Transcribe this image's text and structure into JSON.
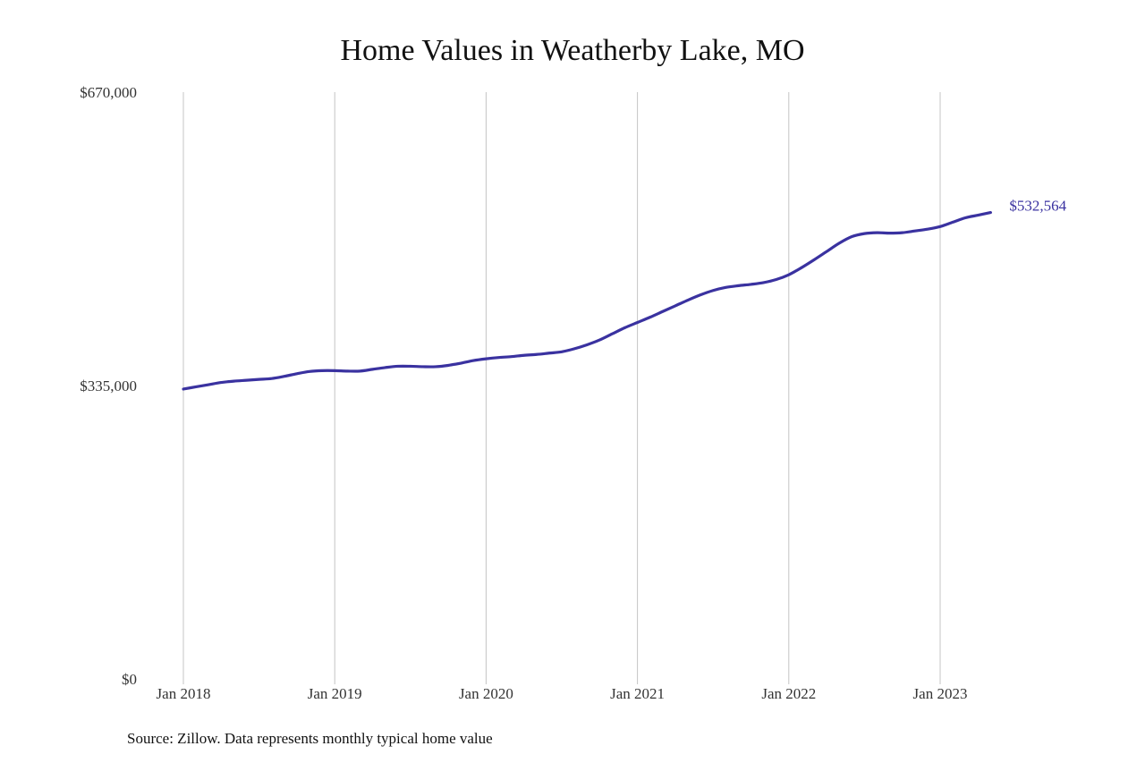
{
  "chart_data": {
    "type": "line",
    "title": "Home Values in Weatherby Lake, MO",
    "source": "Source: Zillow. Data represents monthly typical home value",
    "xlabel": "",
    "ylabel": "",
    "ylim": [
      0,
      670000
    ],
    "yticks": [
      {
        "value": 0,
        "label": "$0"
      },
      {
        "value": 335000,
        "label": "$335,000"
      },
      {
        "value": 670000,
        "label": "$670,000"
      }
    ],
    "xticks": [
      {
        "value": "2018-01",
        "label": "Jan 2018"
      },
      {
        "value": "2019-01",
        "label": "Jan 2019"
      },
      {
        "value": "2020-01",
        "label": "Jan 2020"
      },
      {
        "value": "2021-01",
        "label": "Jan 2021"
      },
      {
        "value": "2022-01",
        "label": "Jan 2022"
      },
      {
        "value": "2023-01",
        "label": "Jan 2023"
      }
    ],
    "grid": "vertical",
    "line_color": "#3a32a0",
    "start_month": "2018-01",
    "end_label": "$532,564",
    "values": [
      331000,
      333500,
      336000,
      338500,
      340000,
      341000,
      342000,
      343000,
      345500,
      348500,
      351000,
      352000,
      352000,
      351500,
      351500,
      353500,
      355500,
      357000,
      357000,
      356500,
      356500,
      358000,
      360500,
      363500,
      365500,
      367000,
      368000,
      369500,
      370500,
      372000,
      373500,
      377000,
      381500,
      387000,
      394000,
      401000,
      407000,
      413000,
      419500,
      426000,
      432500,
      438500,
      443500,
      447000,
      449000,
      450500,
      452500,
      456000,
      461500,
      469500,
      478500,
      488000,
      497500,
      505000,
      508500,
      509500,
      509000,
      509500,
      511500,
      513500,
      516500,
      521500,
      526500,
      529500,
      532564
    ]
  }
}
